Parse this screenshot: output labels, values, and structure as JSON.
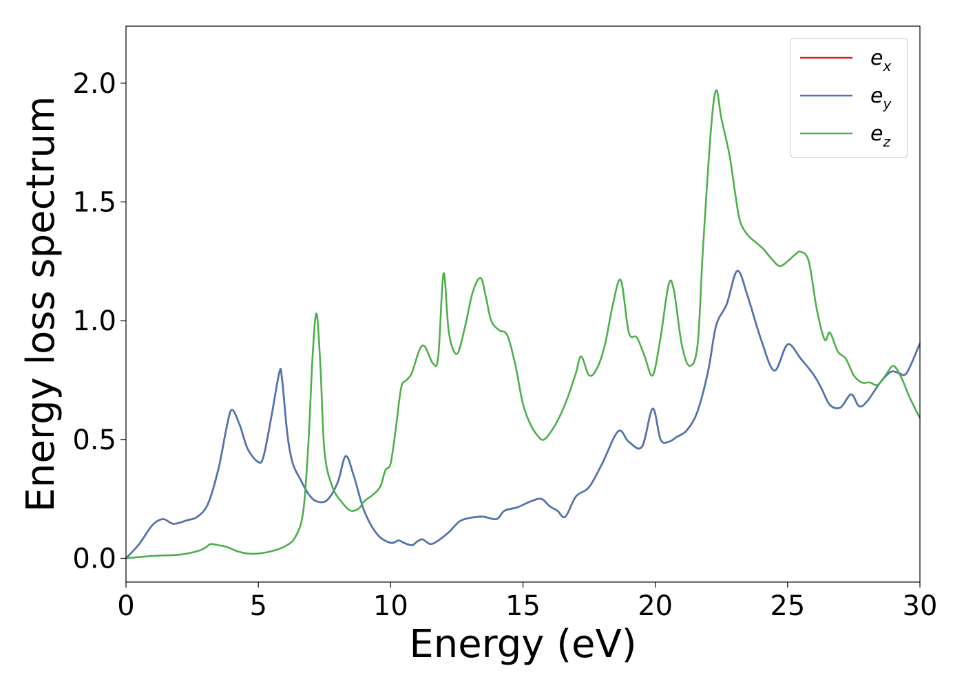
{
  "chart_data": {
    "type": "line",
    "xlabel": "Energy (eV)",
    "ylabel": "Energy loss spectrum",
    "xlim": [
      0,
      30
    ],
    "ylim": [
      -0.1,
      2.24
    ],
    "xticks": [
      "0",
      "5",
      "10",
      "15",
      "20",
      "25",
      "30"
    ],
    "yticks": [
      "0.0",
      "0.5",
      "1.0",
      "1.5",
      "2.0"
    ],
    "grid": false,
    "legend_position": "top-right",
    "series": [
      {
        "name": "e_x",
        "legend_base": "e",
        "legend_sub": "x",
        "color": "#e41a1c",
        "x": [
          0,
          0.5,
          1.0,
          1.4,
          1.8,
          2.3,
          2.7,
          3.1,
          3.5,
          3.8,
          4.0,
          4.3,
          4.6,
          5.0,
          5.2,
          5.5,
          5.8,
          5.9,
          6.1,
          6.3,
          6.6,
          6.9,
          7.2,
          7.6,
          8.0,
          8.3,
          8.6,
          9.0,
          9.5,
          10.0,
          10.3,
          10.5,
          10.8,
          11.0,
          11.2,
          11.5,
          11.8,
          12.2,
          12.6,
          13.0,
          13.5,
          14.0,
          14.3,
          14.8,
          15.3,
          15.7,
          16.0,
          16.3,
          16.6,
          17.0,
          17.5,
          18.0,
          18.6,
          19.0,
          19.5,
          19.9,
          20.2,
          20.5,
          20.8,
          21.2,
          21.6,
          22.0,
          22.3,
          22.7,
          23.1,
          23.5,
          24.0,
          24.5,
          25.0,
          25.5,
          26.0,
          26.3,
          26.6,
          27.0,
          27.4,
          27.7,
          28.0,
          28.5,
          28.9,
          29.2,
          29.5,
          30.0
        ],
        "values": [
          0.0,
          0.06,
          0.14,
          0.165,
          0.145,
          0.16,
          0.175,
          0.23,
          0.38,
          0.55,
          0.625,
          0.56,
          0.46,
          0.405,
          0.43,
          0.6,
          0.785,
          0.75,
          0.52,
          0.4,
          0.33,
          0.27,
          0.24,
          0.245,
          0.32,
          0.43,
          0.35,
          0.2,
          0.1,
          0.065,
          0.075,
          0.065,
          0.055,
          0.07,
          0.08,
          0.06,
          0.075,
          0.11,
          0.155,
          0.17,
          0.175,
          0.165,
          0.2,
          0.215,
          0.24,
          0.25,
          0.22,
          0.2,
          0.175,
          0.26,
          0.3,
          0.4,
          0.535,
          0.49,
          0.47,
          0.63,
          0.5,
          0.49,
          0.51,
          0.54,
          0.62,
          0.79,
          0.98,
          1.07,
          1.21,
          1.1,
          0.92,
          0.79,
          0.9,
          0.84,
          0.77,
          0.71,
          0.645,
          0.635,
          0.69,
          0.64,
          0.66,
          0.74,
          0.785,
          0.78,
          0.78,
          0.905
        ]
      },
      {
        "name": "e_y",
        "legend_base": "e",
        "legend_sub": "y",
        "color": "#4a77b4",
        "x": [
          0,
          0.5,
          1.0,
          1.4,
          1.8,
          2.3,
          2.7,
          3.1,
          3.5,
          3.8,
          4.0,
          4.3,
          4.6,
          5.0,
          5.2,
          5.5,
          5.8,
          5.9,
          6.1,
          6.3,
          6.6,
          6.9,
          7.2,
          7.6,
          8.0,
          8.3,
          8.6,
          9.0,
          9.5,
          10.0,
          10.3,
          10.5,
          10.8,
          11.0,
          11.2,
          11.5,
          11.8,
          12.2,
          12.6,
          13.0,
          13.5,
          14.0,
          14.3,
          14.8,
          15.3,
          15.7,
          16.0,
          16.3,
          16.6,
          17.0,
          17.5,
          18.0,
          18.6,
          19.0,
          19.5,
          19.9,
          20.2,
          20.5,
          20.8,
          21.2,
          21.6,
          22.0,
          22.3,
          22.7,
          23.1,
          23.5,
          24.0,
          24.5,
          25.0,
          25.5,
          26.0,
          26.3,
          26.6,
          27.0,
          27.4,
          27.7,
          28.0,
          28.5,
          28.9,
          29.2,
          29.5,
          30.0
        ],
        "values": [
          0.0,
          0.06,
          0.14,
          0.165,
          0.145,
          0.16,
          0.175,
          0.23,
          0.38,
          0.55,
          0.625,
          0.56,
          0.46,
          0.405,
          0.43,
          0.6,
          0.785,
          0.75,
          0.52,
          0.4,
          0.33,
          0.27,
          0.24,
          0.245,
          0.32,
          0.43,
          0.35,
          0.2,
          0.1,
          0.065,
          0.075,
          0.065,
          0.055,
          0.07,
          0.08,
          0.06,
          0.075,
          0.11,
          0.155,
          0.17,
          0.175,
          0.165,
          0.2,
          0.215,
          0.24,
          0.25,
          0.22,
          0.2,
          0.175,
          0.26,
          0.3,
          0.4,
          0.535,
          0.49,
          0.47,
          0.63,
          0.5,
          0.49,
          0.51,
          0.54,
          0.62,
          0.79,
          0.98,
          1.07,
          1.21,
          1.1,
          0.92,
          0.79,
          0.9,
          0.84,
          0.77,
          0.71,
          0.645,
          0.635,
          0.69,
          0.64,
          0.66,
          0.74,
          0.785,
          0.78,
          0.78,
          0.905
        ]
      },
      {
        "name": "e_z",
        "legend_base": "e",
        "legend_sub": "z",
        "color": "#4daf4a",
        "x": [
          0,
          1.0,
          2.0,
          2.7,
          3.0,
          3.2,
          3.5,
          3.8,
          4.2,
          4.6,
          5.0,
          5.5,
          6.0,
          6.4,
          6.7,
          6.9,
          7.05,
          7.2,
          7.35,
          7.5,
          7.8,
          8.2,
          8.5,
          8.8,
          9.0,
          9.3,
          9.6,
          9.8,
          10.0,
          10.2,
          10.4,
          10.6,
          10.8,
          11.1,
          11.3,
          11.6,
          11.8,
          12.0,
          12.2,
          12.5,
          12.8,
          13.1,
          13.4,
          13.6,
          13.8,
          14.1,
          14.4,
          14.7,
          15.0,
          15.3,
          15.6,
          15.8,
          16.1,
          16.4,
          16.7,
          17.0,
          17.2,
          17.5,
          17.8,
          18.1,
          18.4,
          18.7,
          19.0,
          19.3,
          19.6,
          19.9,
          20.2,
          20.5,
          20.7,
          21.0,
          21.3,
          21.6,
          21.8,
          22.1,
          22.3,
          22.5,
          22.8,
          23.0,
          23.2,
          23.5,
          23.8,
          24.1,
          24.4,
          24.7,
          25.0,
          25.3,
          25.5,
          25.8,
          26.1,
          26.4,
          26.6,
          26.9,
          27.2,
          27.5,
          27.8,
          28.1,
          28.4,
          28.7,
          29.0,
          29.3,
          29.6,
          30.0
        ],
        "values": [
          0.0,
          0.01,
          0.015,
          0.03,
          0.045,
          0.06,
          0.055,
          0.048,
          0.03,
          0.02,
          0.02,
          0.03,
          0.05,
          0.09,
          0.2,
          0.5,
          0.85,
          1.03,
          0.8,
          0.45,
          0.3,
          0.23,
          0.2,
          0.21,
          0.24,
          0.265,
          0.3,
          0.37,
          0.4,
          0.55,
          0.72,
          0.75,
          0.78,
          0.88,
          0.89,
          0.82,
          0.85,
          1.2,
          0.95,
          0.86,
          0.97,
          1.12,
          1.18,
          1.1,
          1.0,
          0.96,
          0.94,
          0.82,
          0.65,
          0.56,
          0.51,
          0.5,
          0.54,
          0.6,
          0.68,
          0.78,
          0.85,
          0.77,
          0.8,
          0.9,
          1.07,
          1.17,
          0.95,
          0.93,
          0.85,
          0.77,
          0.93,
          1.15,
          1.13,
          0.9,
          0.81,
          0.9,
          1.3,
          1.8,
          1.97,
          1.85,
          1.7,
          1.55,
          1.42,
          1.36,
          1.33,
          1.3,
          1.26,
          1.23,
          1.25,
          1.28,
          1.29,
          1.25,
          1.05,
          0.92,
          0.95,
          0.87,
          0.84,
          0.77,
          0.74,
          0.74,
          0.73,
          0.77,
          0.81,
          0.76,
          0.68,
          0.59
        ]
      }
    ]
  }
}
